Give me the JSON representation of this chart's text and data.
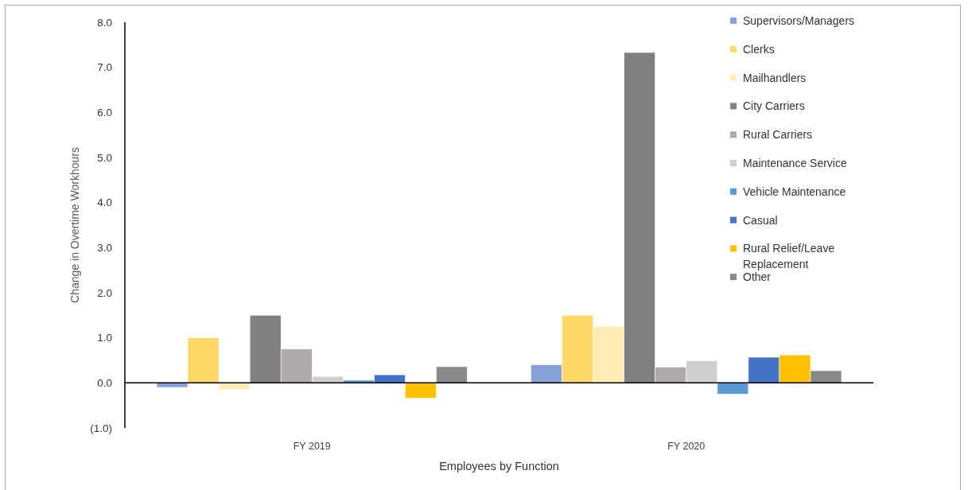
{
  "chart_data": {
    "type": "bar",
    "xlabel": "Employees by Function",
    "ylabel": "Change in Overtime Workhours",
    "categories": [
      "FY 2019",
      "FY 2020"
    ],
    "series": [
      {
        "name": "Supervisors/Managers",
        "color": "#86a3d9",
        "values": [
          -0.1,
          0.4
        ]
      },
      {
        "name": "Clerks",
        "color": "#ffd966",
        "values": [
          1.0,
          1.5
        ]
      },
      {
        "name": "Mailhandlers",
        "color": "#ffebb3",
        "values": [
          -0.15,
          1.25
        ]
      },
      {
        "name": "City Carriers",
        "color": "#808080",
        "values": [
          1.5,
          7.33
        ]
      },
      {
        "name": "Rural Carriers",
        "color": "#aeaaaa",
        "values": [
          0.75,
          0.35
        ]
      },
      {
        "name": "Maintenance Service",
        "color": "#d0cece",
        "values": [
          0.14,
          0.49
        ]
      },
      {
        "name": "Vehicle Maintenance",
        "color": "#5b9bd5",
        "values": [
          0.06,
          -0.25
        ]
      },
      {
        "name": "Casual",
        "color": "#4472c4",
        "values": [
          0.18,
          0.57
        ]
      },
      {
        "name": "Rural Relief/Leave Replacement",
        "color": "#ffc000",
        "values": [
          -0.34,
          0.62
        ]
      },
      {
        "name": "Other",
        "color": "#898989",
        "values": [
          0.36,
          0.27
        ]
      }
    ],
    "ylim": [
      -1,
      8
    ],
    "yticks": [
      {
        "value": -1,
        "label": "(1.0)"
      },
      {
        "value": 0,
        "label": "0.0"
      },
      {
        "value": 1,
        "label": "1.0"
      },
      {
        "value": 2,
        "label": "2.0"
      },
      {
        "value": 3,
        "label": "3.0"
      },
      {
        "value": 4,
        "label": "4.0"
      },
      {
        "value": 5,
        "label": "5.0"
      },
      {
        "value": 6,
        "label": "6.0"
      },
      {
        "value": 7,
        "label": "7.0"
      },
      {
        "value": 8,
        "label": "8.0"
      }
    ],
    "legend": "top right"
  }
}
